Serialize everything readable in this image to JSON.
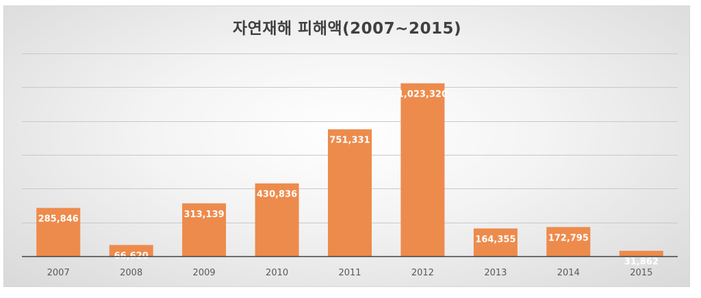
{
  "chart_data": {
    "type": "bar",
    "title": "자연재해 피해액(2007~2015)",
    "xlabel": "",
    "ylabel": "",
    "categories": [
      "2007",
      "2008",
      "2009",
      "2010",
      "2011",
      "2012",
      "2013",
      "2014",
      "2015"
    ],
    "values": [
      285846,
      66620,
      313139,
      430836,
      751331,
      1023320,
      164355,
      172795,
      31862
    ],
    "value_labels": [
      "285,846",
      "66,620",
      "313,139",
      "430,836",
      "751,331",
      "1,023,320",
      "164,355",
      "172,795",
      "31,862"
    ],
    "ylim": [
      0,
      1200000
    ],
    "ygrid_step": 200000,
    "grid": true,
    "legend": "none",
    "colors": {
      "bar": "#ed8b4c",
      "grid": "#c8c8c8",
      "axis": "#404040",
      "title": "#404040"
    }
  }
}
